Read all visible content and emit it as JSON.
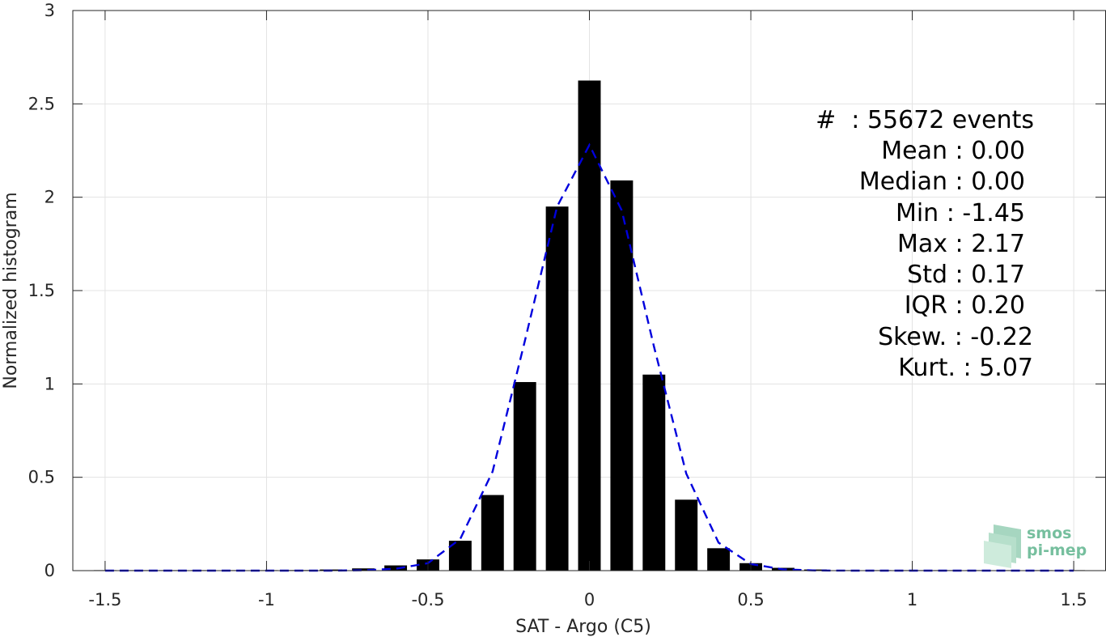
{
  "chart_data": {
    "type": "bar",
    "xlabel": "SAT - Argo (C5)",
    "ylabel": "Normalized histogram",
    "xlim": [
      -1.6,
      1.6
    ],
    "ylim": [
      0,
      3
    ],
    "xticks": [
      -1.5,
      -1,
      -0.5,
      0,
      0.5,
      1,
      1.5
    ],
    "xtick_labels": [
      "-1.5",
      "-1",
      "-0.5",
      "0",
      "0.5",
      "1",
      "1.5"
    ],
    "yticks": [
      0,
      0.5,
      1,
      1.5,
      2,
      2.5,
      3
    ],
    "ytick_labels": [
      "0",
      "0.5",
      "1",
      "1.5",
      "2",
      "2.5",
      "3"
    ],
    "grid": true,
    "bar_color": "#000000",
    "bin_centers": [
      -1.5,
      -1.4,
      -1.3,
      -1.2,
      -1.1,
      -1.0,
      -0.9,
      -0.8,
      -0.7,
      -0.6,
      -0.5,
      -0.4,
      -0.3,
      -0.2,
      -0.1,
      0.0,
      0.1,
      0.2,
      0.3,
      0.4,
      0.5,
      0.6,
      0.7,
      0.8,
      0.9,
      1.0,
      1.1,
      1.2,
      1.3,
      1.4,
      1.5
    ],
    "bar_values": [
      0.002,
      0.002,
      0.002,
      0.002,
      0.002,
      0.002,
      0.003,
      0.006,
      0.012,
      0.028,
      0.06,
      0.16,
      0.405,
      1.01,
      1.95,
      2.625,
      2.09,
      1.05,
      0.38,
      0.12,
      0.04,
      0.015,
      0.006,
      0.002,
      0.002,
      0.002,
      0.002,
      0.002,
      0.002,
      0.002,
      0.002
    ],
    "bar_width": 0.07,
    "fit_curve": {
      "style": "dashed",
      "color": "#0000dd",
      "x": [
        -1.5,
        -1.4,
        -1.3,
        -1.2,
        -1.1,
        -1.0,
        -0.9,
        -0.8,
        -0.7,
        -0.6,
        -0.5,
        -0.4,
        -0.3,
        -0.2,
        -0.1,
        0.0,
        0.1,
        0.2,
        0.3,
        0.4,
        0.5,
        0.6,
        0.7,
        0.8,
        0.9,
        1.0,
        1.1,
        1.2,
        1.3,
        1.4,
        1.5
      ],
      "y": [
        0,
        0,
        0,
        0,
        0,
        0,
        0,
        0,
        0.002,
        0.01,
        0.04,
        0.17,
        0.53,
        1.23,
        1.95,
        2.28,
        1.93,
        1.2,
        0.52,
        0.15,
        0.035,
        0.007,
        0.001,
        0,
        0,
        0,
        0,
        0,
        0,
        0,
        0
      ]
    },
    "annotations": [
      "#  : 55672 events",
      "Mean : 0.00",
      "Median : 0.00",
      "Min : -1.45",
      "Max : 2.17",
      "Std : 0.17",
      "IQR : 0.20",
      "Skew. : -0.22",
      "Kurt. : 5.07"
    ]
  },
  "logo": {
    "line1": "smos",
    "line2": "pi-mep",
    "color": "#5fb58e"
  }
}
